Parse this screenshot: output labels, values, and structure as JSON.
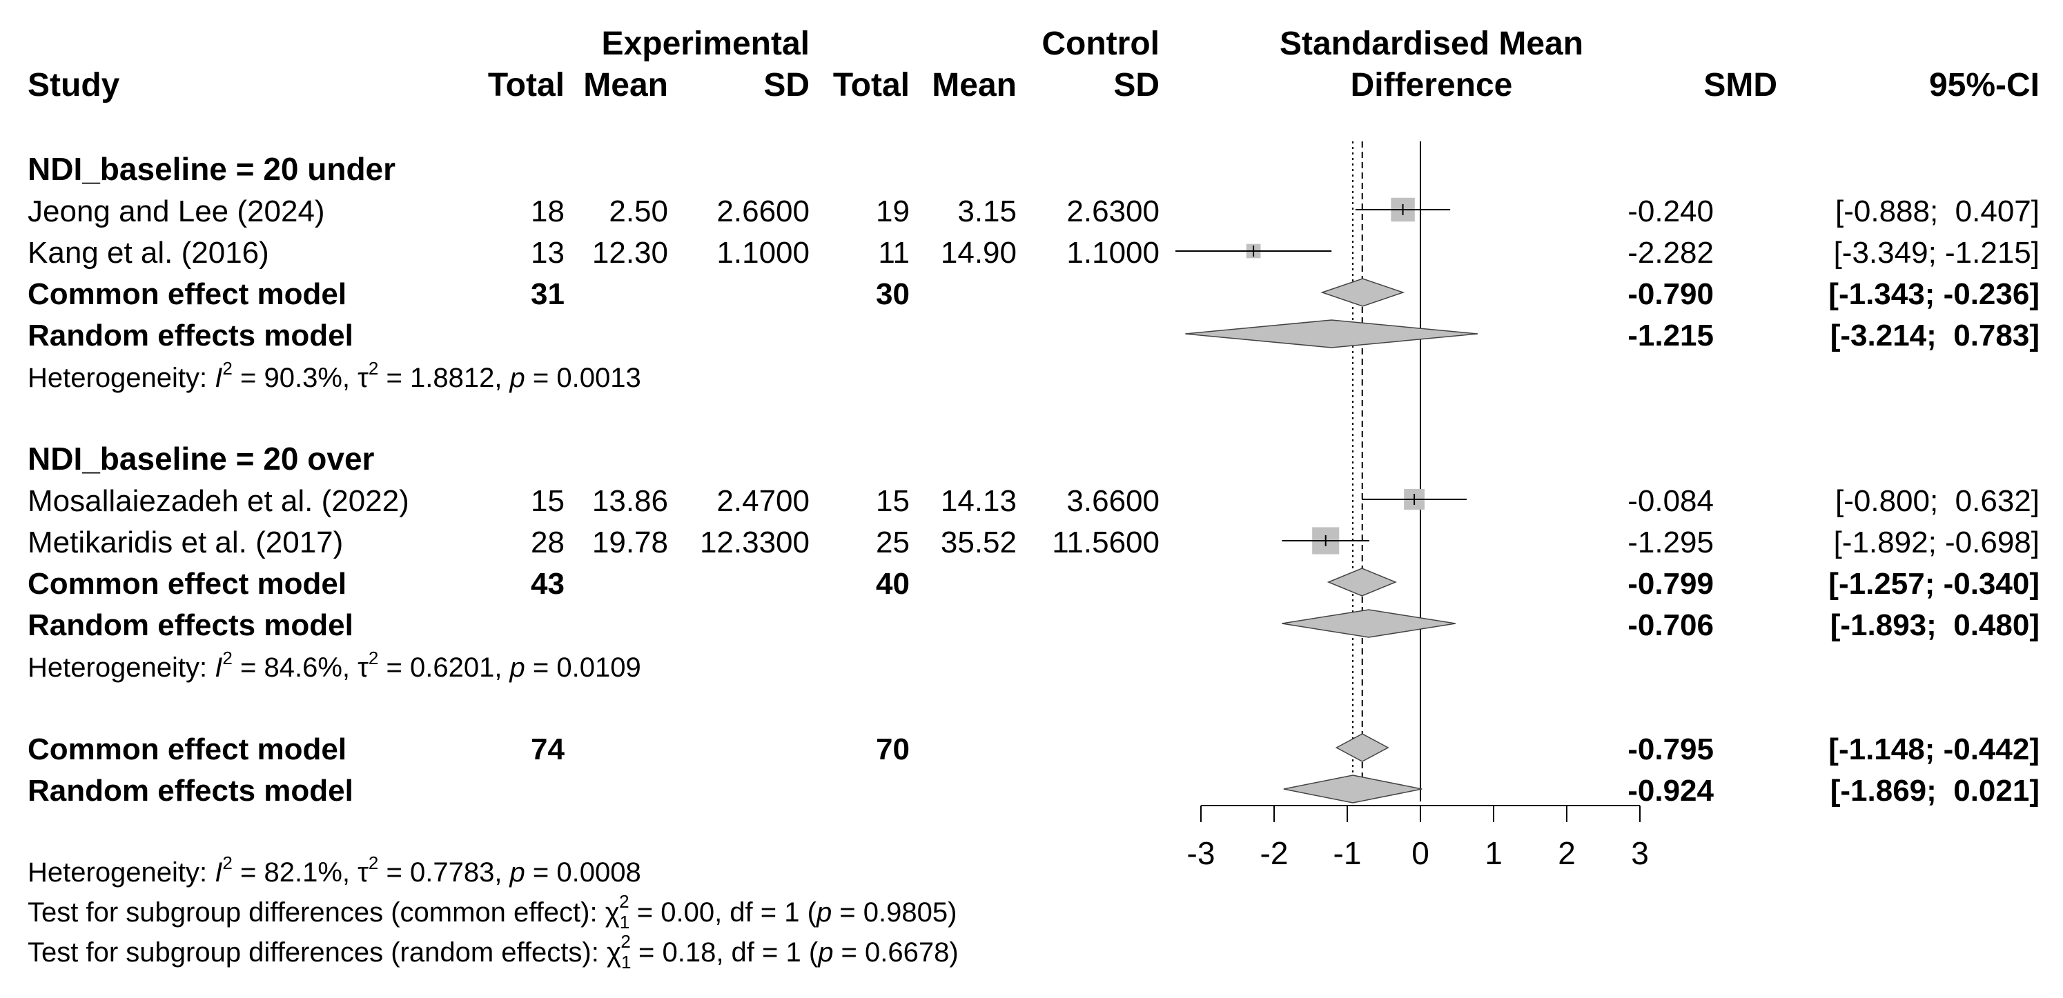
{
  "header": {
    "group_experimental": "Experimental",
    "group_control": "Control",
    "plot_title_1": "Standardised Mean",
    "plot_title_2": "Difference",
    "col_study": "Study",
    "col_total": "Total",
    "col_mean": "Mean",
    "col_sd": "SD",
    "col_smd": "SMD",
    "col_ci": "95%-CI"
  },
  "subgroups": [
    {
      "label": "NDI_baseline = 20 under",
      "studies": [
        {
          "name": "Jeong and Lee (2024)",
          "e_total": "18",
          "e_mean": "2.50",
          "e_sd": "2.6600",
          "c_total": "19",
          "c_mean": "3.15",
          "c_sd": "2.6300",
          "smd_text": "-0.240",
          "ci_text": "[-0.888;  0.407]"
        },
        {
          "name": "Kang et al. (2016)",
          "e_total": "13",
          "e_mean": "12.30",
          "e_sd": "1.1000",
          "c_total": "11",
          "c_mean": "14.90",
          "c_sd": "1.1000",
          "smd_text": "-2.282",
          "ci_text": "[-3.349; -1.215]"
        }
      ],
      "common": {
        "label": "Common effect model",
        "e_total": "31",
        "c_total": "30",
        "smd_text": "-0.790",
        "ci_text": "[-1.343; -0.236]"
      },
      "random": {
        "label": "Random effects model",
        "smd_text": "-1.215",
        "ci_text": "[-3.214;  0.783]"
      },
      "het": {
        "prefix": "Heterogeneity: ",
        "i": "I",
        "sup2": "2",
        "i2_value": " = 90.3%, ",
        "tau": "τ",
        "tau_value": " = 1.8812, ",
        "p": "p",
        "p_value": " = 0.0013"
      }
    },
    {
      "label": "NDI_baseline = 20 over",
      "studies": [
        {
          "name": "Mosallaiezadeh et al. (2022)",
          "e_total": "15",
          "e_mean": "13.86",
          "e_sd": "2.4700",
          "c_total": "15",
          "c_mean": "14.13",
          "c_sd": "3.6600",
          "smd_text": "-0.084",
          "ci_text": "[-0.800;  0.632]"
        },
        {
          "name": "Metikaridis et al. (2017)",
          "e_total": "28",
          "e_mean": "19.78",
          "e_sd": "12.3300",
          "c_total": "25",
          "c_mean": "35.52",
          "c_sd": "11.5600",
          "smd_text": "-1.295",
          "ci_text": "[-1.892; -0.698]"
        }
      ],
      "common": {
        "label": "Common effect model",
        "e_total": "43",
        "c_total": "40",
        "smd_text": "-0.799",
        "ci_text": "[-1.257; -0.340]"
      },
      "random": {
        "label": "Random effects model",
        "smd_text": "-0.706",
        "ci_text": "[-1.893;  0.480]"
      },
      "het": {
        "prefix": "Heterogeneity: ",
        "i": "I",
        "sup2": "2",
        "i2_value": " = 84.6%, ",
        "tau": "τ",
        "tau_value": " = 0.6201, ",
        "p": "p",
        "p_value": " = 0.0109"
      }
    }
  ],
  "overall": {
    "common": {
      "label": "Common effect model",
      "e_total": "74",
      "c_total": "70",
      "smd_text": "-0.795",
      "ci_text": "[-1.148; -0.442]"
    },
    "random": {
      "label": "Random effects model",
      "smd_text": "-0.924",
      "ci_text": "[-1.869;  0.021]"
    },
    "het": {
      "prefix": "Heterogeneity: ",
      "i": "I",
      "sup2": "2",
      "i2_value": " = 82.1%, ",
      "tau": "τ",
      "tau_value": " = 0.7783, ",
      "p": "p",
      "p_value": " = 0.0008"
    },
    "test_common": {
      "prefix": "Test for subgroup differences (common effect): ",
      "chi": "χ",
      "sub": "1",
      "sup": "2",
      "mid": " = 0.00, df = 1 (",
      "p": "p",
      "p_value": " = 0.9805)"
    },
    "test_random": {
      "prefix": "Test for subgroup differences (random effects): ",
      "chi": "χ",
      "sub": "1",
      "sup": "2",
      "mid": " = 0.18, df = 1 (",
      "p": "p",
      "p_value": " = 0.6678)"
    }
  },
  "chart_data": {
    "type": "forest",
    "title": "Standardised Mean Difference",
    "x_ticks": [
      -3,
      -2,
      -1,
      0,
      1,
      2,
      3
    ],
    "xlim": [
      -3,
      3
    ],
    "reference_line": 0,
    "common_effect_line": -0.795,
    "random_effect_line": -0.924,
    "studies": [
      {
        "name": "Jeong and Lee (2024)",
        "subgroup": "NDI_baseline = 20 under",
        "smd": -0.24,
        "lower": -0.888,
        "upper": 0.407,
        "weight_rel": 0.75
      },
      {
        "name": "Kang et al. (2016)",
        "subgroup": "NDI_baseline = 20 under",
        "smd": -2.282,
        "lower": -3.349,
        "upper": -1.215,
        "weight_rel": 0.45
      },
      {
        "name": "Mosallaiezadeh et al. (2022)",
        "subgroup": "NDI_baseline = 20 over",
        "smd": -0.084,
        "lower": -0.8,
        "upper": 0.632,
        "weight_rel": 0.65
      },
      {
        "name": "Metikaridis et al. (2017)",
        "subgroup": "NDI_baseline = 20 over",
        "smd": -1.295,
        "lower": -1.892,
        "upper": -0.698,
        "weight_rel": 0.85
      }
    ],
    "pooled": [
      {
        "name": "Common effect model",
        "subgroup": "NDI_baseline = 20 under",
        "smd": -0.79,
        "lower": -1.343,
        "upper": -0.236
      },
      {
        "name": "Random effects model",
        "subgroup": "NDI_baseline = 20 under",
        "smd": -1.215,
        "lower": -3.214,
        "upper": 0.783
      },
      {
        "name": "Common effect model",
        "subgroup": "NDI_baseline = 20 over",
        "smd": -0.799,
        "lower": -1.257,
        "upper": -0.34
      },
      {
        "name": "Random effects model",
        "subgroup": "NDI_baseline = 20 over",
        "smd": -0.706,
        "lower": -1.893,
        "upper": 0.48
      },
      {
        "name": "Common effect model",
        "subgroup": "overall",
        "smd": -0.795,
        "lower": -1.148,
        "upper": -0.442
      },
      {
        "name": "Random effects model",
        "subgroup": "overall",
        "smd": -0.924,
        "lower": -1.869,
        "upper": 0.021
      }
    ],
    "colors": {
      "box": "#c0c0c0",
      "diamond": "#c0c0c0",
      "line": "#000000"
    }
  }
}
